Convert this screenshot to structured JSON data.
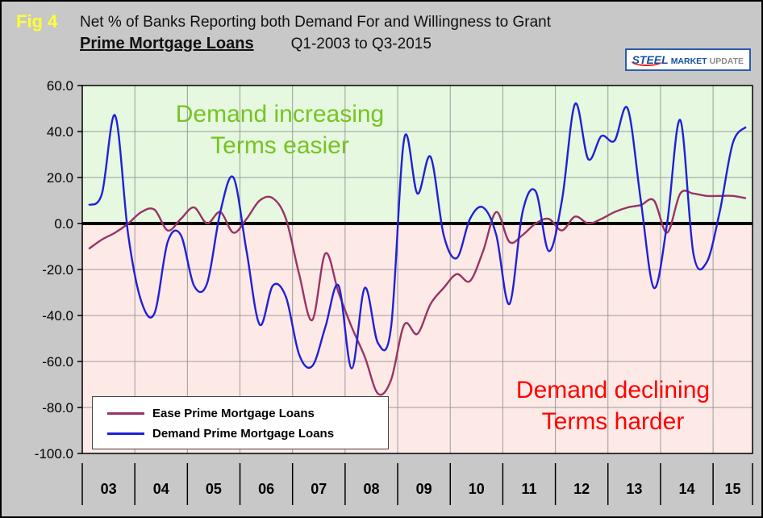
{
  "page": {
    "fig_label": "Fig 4",
    "title_line1": "Net % of Banks Reporting both Demand For and Willingness to Grant",
    "title_subject": "Prime Mortgage Loans",
    "title_range": "Q1-2003 to Q3-2015"
  },
  "logo": {
    "word1": "STEEL",
    "word2": "MARKET",
    "word3": "UPDATE"
  },
  "annotations": {
    "increase_line1": "Demand increasing",
    "increase_line2": "Terms easier",
    "decline_line1": "Demand declining",
    "decline_line2": "Terms harder"
  },
  "colors": {
    "page_bg": "#c8c8c8",
    "fig_label": "#ffff33",
    "positive_bg": "#e6f8e0",
    "negative_bg": "#fdeae7",
    "increase_text": "#76c422",
    "decline_text": "#ff0000",
    "grid": "#9b9b9b",
    "zero_line": "#000000"
  },
  "chart_data": {
    "type": "line",
    "title": "Net % of Banks Reporting both Demand For and Willingness to Grant Prime Mortgage Loans",
    "x_start": "Q1-2003",
    "x_end": "Q3-2015",
    "x_year_labels": [
      "03",
      "04",
      "05",
      "06",
      "07",
      "08",
      "09",
      "10",
      "11",
      "12",
      "13",
      "14",
      "15"
    ],
    "quarters_per_year": 4,
    "n_points": 51,
    "ylim": [
      -100,
      60
    ],
    "ytick_step": 20,
    "grid": true,
    "legend_position": "bottom-left-inside",
    "series": [
      {
        "name": "Ease Prime Mortgage Loans",
        "color": "#993366",
        "values": [
          -11,
          -7,
          -4,
          0,
          5,
          6,
          -3,
          2,
          7,
          0,
          5,
          -4,
          2,
          10,
          11,
          2,
          -22,
          -42,
          -13,
          -30,
          -45,
          -58,
          -74,
          -68,
          -44,
          -48,
          -35,
          -28,
          -22,
          -25,
          -12,
          5,
          -8,
          -5,
          0,
          2,
          -3,
          3,
          0,
          2,
          5,
          7,
          8,
          10,
          -4,
          13,
          13,
          12,
          12,
          12,
          11
        ]
      },
      {
        "name": "Demand Prime Mortgage Loans",
        "color": "#2020d8",
        "values": [
          8,
          13,
          47,
          -5,
          -34,
          -39,
          -8,
          -5,
          -27,
          -26,
          5,
          20,
          -12,
          -44,
          -27,
          -32,
          -57,
          -62,
          -45,
          -27,
          -63,
          -28,
          -52,
          -45,
          37,
          13,
          29,
          -5,
          -15,
          2,
          7,
          -5,
          -35,
          5,
          14,
          -12,
          10,
          52,
          28,
          38,
          36,
          50,
          10,
          -28,
          0,
          45,
          -13,
          -17,
          5,
          35,
          42
        ]
      }
    ]
  }
}
